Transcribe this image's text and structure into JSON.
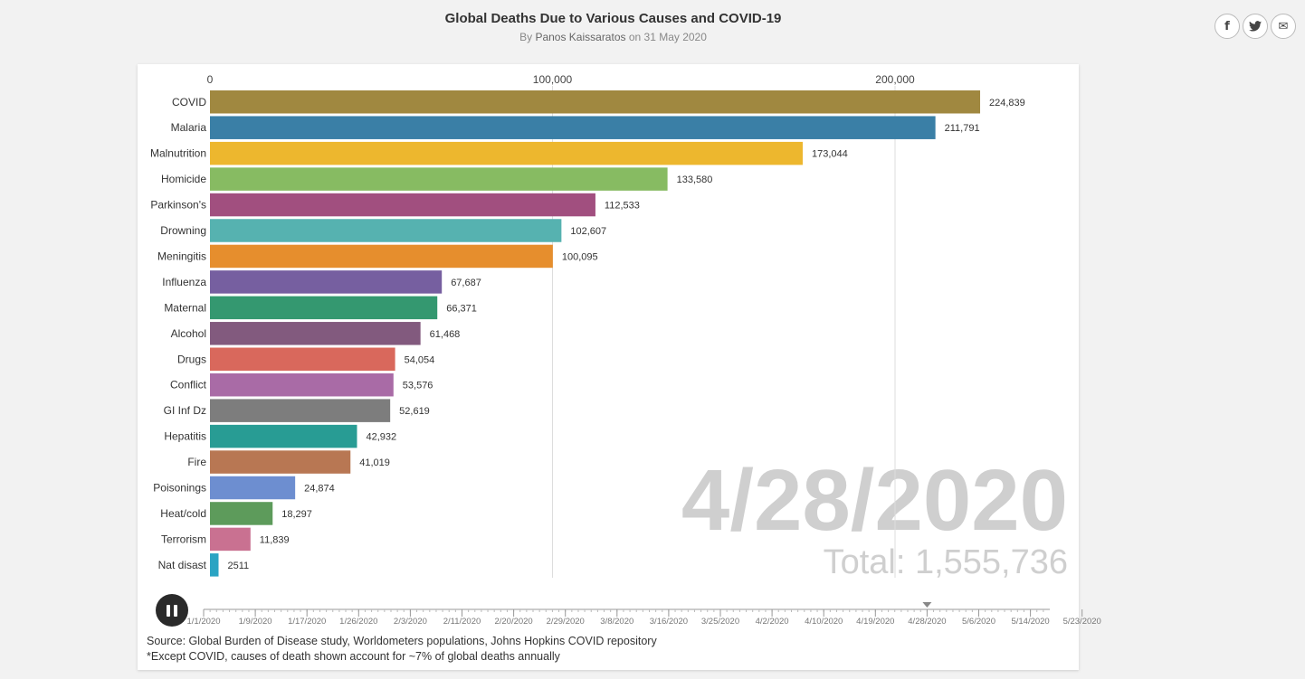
{
  "header": {
    "title": "Global Deaths Due to Various Causes and COVID-19",
    "by_prefix": "By",
    "author": "Panos Kaissaratos",
    "on_date": "on 31 May 2020"
  },
  "share": {
    "facebook_icon": "f",
    "twitter_icon": "🐦",
    "email_icon": "✉"
  },
  "chart_data": {
    "type": "bar",
    "orientation": "horizontal",
    "current_date": "4/28/2020",
    "total_label": "Total: 1,555,736",
    "xlim": [
      0,
      230000
    ],
    "axis_ticks": [
      0,
      100000,
      200000
    ],
    "axis_tick_labels": [
      "0",
      "100,000",
      "200,000"
    ],
    "grid": true,
    "categories": [
      "COVID",
      "Malaria",
      "Malnutrition",
      "Homicide",
      "Parkinson's",
      "Drowning",
      "Meningitis",
      "Influenza",
      "Maternal",
      "Alcohol",
      "Drugs",
      "Conflict",
      "GI Inf Dz",
      "Hepatitis",
      "Fire",
      "Poisonings",
      "Heat/cold",
      "Terrorism",
      "Nat disast"
    ],
    "values": [
      224839,
      211791,
      173044,
      133580,
      112533,
      102607,
      100095,
      67687,
      66371,
      61468,
      54054,
      53576,
      52619,
      42932,
      41019,
      24874,
      18297,
      11839,
      2511
    ],
    "value_labels": [
      "224,839",
      "211,791",
      "173,044",
      "133,580",
      "112,533",
      "102,607",
      "100,095",
      "67,687",
      "66,371",
      "61,468",
      "54,054",
      "53,576",
      "52,619",
      "42,932",
      "41,019",
      "24,874",
      "18,297",
      "11,839",
      "2511"
    ],
    "colors": [
      "#a08840",
      "#3a7fa6",
      "#edb72e",
      "#87bb62",
      "#a14f7f",
      "#56b2b0",
      "#e68e2d",
      "#765fa0",
      "#349870",
      "#825a7e",
      "#d9685c",
      "#a96ba6",
      "#7d7d7d",
      "#289c94",
      "#b87753",
      "#6d8ed0",
      "#5d9b5b",
      "#c97191",
      "#2aa4c3"
    ]
  },
  "timeline": {
    "labels": [
      "1/1/2020",
      "1/9/2020",
      "1/17/2020",
      "1/26/2020",
      "2/3/2020",
      "2/11/2020",
      "2/20/2020",
      "2/29/2020",
      "3/8/2020",
      "3/16/2020",
      "3/25/2020",
      "4/2/2020",
      "4/10/2020",
      "4/19/2020",
      "4/28/2020",
      "5/6/2020",
      "5/14/2020",
      "5/23/2020"
    ],
    "current_index": 14,
    "playing": true
  },
  "source": {
    "line1": "Source: Global Burden of Disease study, Worldometers populations, Johns Hopkins COVID repository",
    "line2": "*Except COVID, causes of death shown account for ~7% of global deaths annually"
  }
}
